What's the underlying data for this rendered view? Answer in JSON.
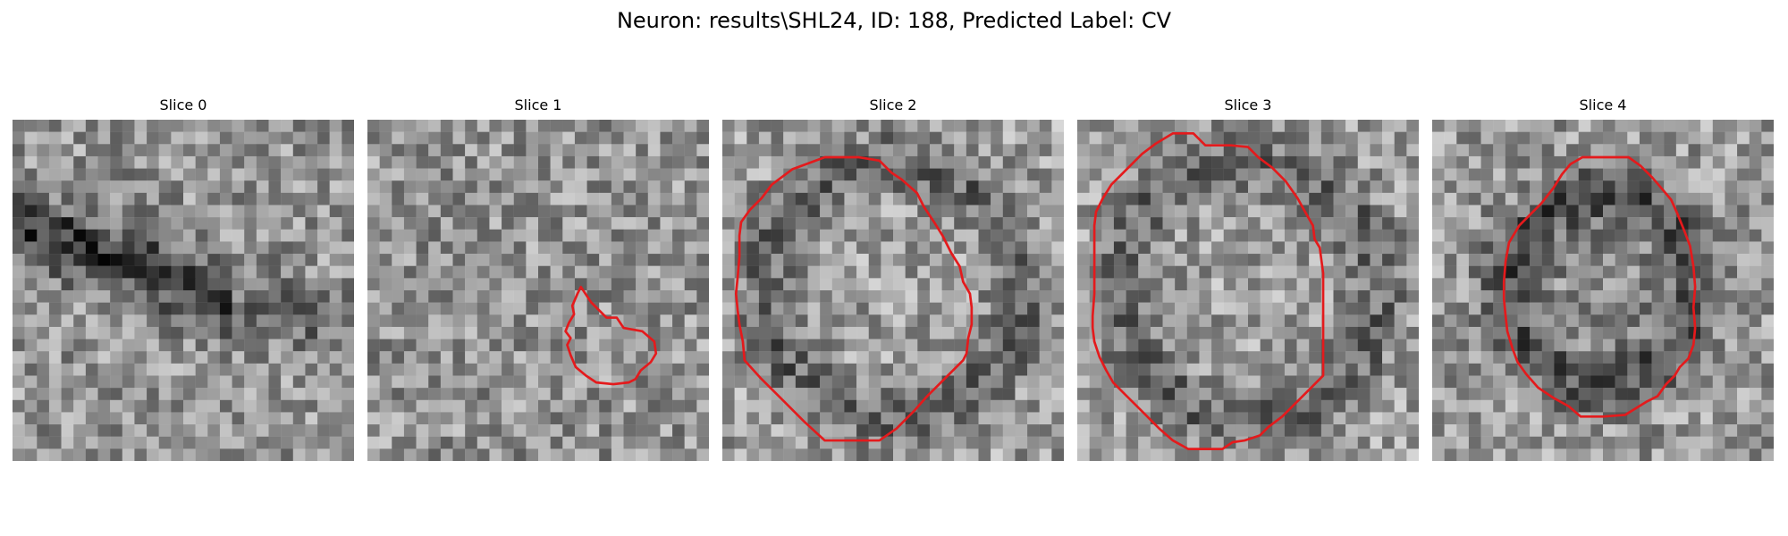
{
  "figure": {
    "title": "Neuron: results\\SHL24, ID: 188, Predicted Label: CV",
    "contour_color": "#e41a1c"
  },
  "panels": [
    {
      "title": "Slice 0",
      "seed": 11,
      "pattern": "dark-band",
      "contour": []
    },
    {
      "title": "Slice 1",
      "seed": 23,
      "pattern": "noise",
      "contour": [
        [
          12.5,
          9.8
        ],
        [
          13.1,
          10.7
        ],
        [
          14.0,
          11.6
        ],
        [
          14.6,
          11.6
        ],
        [
          15.0,
          12.2
        ],
        [
          16.1,
          12.4
        ],
        [
          16.8,
          13.0
        ],
        [
          16.9,
          13.7
        ],
        [
          16.6,
          14.2
        ],
        [
          16.0,
          14.7
        ],
        [
          15.7,
          15.2
        ],
        [
          15.3,
          15.4
        ],
        [
          14.4,
          15.5
        ],
        [
          13.4,
          15.4
        ],
        [
          12.8,
          15.0
        ],
        [
          12.2,
          14.5
        ],
        [
          11.9,
          13.8
        ],
        [
          11.7,
          13.2
        ],
        [
          11.9,
          12.8
        ],
        [
          11.6,
          12.4
        ],
        [
          11.8,
          11.9
        ],
        [
          12.1,
          11.4
        ],
        [
          12.0,
          10.9
        ],
        [
          12.3,
          10.2
        ]
      ]
    },
    {
      "title": "Slice 2",
      "seed": 37,
      "pattern": "ring",
      "contour": [
        [
          4.1,
          2.9
        ],
        [
          6.0,
          2.2
        ],
        [
          8.0,
          2.2
        ],
        [
          9.2,
          2.4
        ],
        [
          9.9,
          3.1
        ],
        [
          10.5,
          3.5
        ],
        [
          11.4,
          4.3
        ],
        [
          11.8,
          5.1
        ],
        [
          12.4,
          6.0
        ],
        [
          12.9,
          6.8
        ],
        [
          13.4,
          7.8
        ],
        [
          13.9,
          8.6
        ],
        [
          14.1,
          9.5
        ],
        [
          14.5,
          10.2
        ],
        [
          14.6,
          11.0
        ],
        [
          14.6,
          12.0
        ],
        [
          14.4,
          12.8
        ],
        [
          14.3,
          13.7
        ],
        [
          14.1,
          14.1
        ],
        [
          13.2,
          15.0
        ],
        [
          12.0,
          16.2
        ],
        [
          11.2,
          17.1
        ],
        [
          10.2,
          18.1
        ],
        [
          9.2,
          18.8
        ],
        [
          8.1,
          18.8
        ],
        [
          6.0,
          18.8
        ],
        [
          4.8,
          17.7
        ],
        [
          3.5,
          16.4
        ],
        [
          2.2,
          15.1
        ],
        [
          1.3,
          14.1
        ],
        [
          1.2,
          13.0
        ],
        [
          1.0,
          12.0
        ],
        [
          0.9,
          11.2
        ],
        [
          0.8,
          10.2
        ],
        [
          0.9,
          9.2
        ],
        [
          1.0,
          8.0
        ],
        [
          1.0,
          6.8
        ],
        [
          1.1,
          6.0
        ],
        [
          1.6,
          5.3
        ],
        [
          2.3,
          4.6
        ],
        [
          2.9,
          3.8
        ]
      ]
    },
    {
      "title": "Slice 3",
      "seed": 53,
      "pattern": "ring",
      "contour": [
        [
          4.6,
          1.4
        ],
        [
          5.6,
          0.8
        ],
        [
          6.8,
          0.8
        ],
        [
          7.5,
          1.5
        ],
        [
          9.0,
          1.5
        ],
        [
          10.0,
          1.6
        ],
        [
          10.6,
          2.2
        ],
        [
          11.4,
          2.8
        ],
        [
          12.2,
          3.6
        ],
        [
          12.9,
          4.6
        ],
        [
          13.4,
          5.5
        ],
        [
          13.8,
          6.2
        ],
        [
          13.9,
          7.0
        ],
        [
          14.2,
          7.5
        ],
        [
          14.4,
          9.0
        ],
        [
          14.4,
          11.0
        ],
        [
          14.4,
          13.0
        ],
        [
          14.4,
          15.0
        ],
        [
          13.6,
          15.8
        ],
        [
          12.8,
          16.6
        ],
        [
          12.0,
          17.4
        ],
        [
          11.2,
          18.0
        ],
        [
          10.7,
          18.5
        ],
        [
          9.8,
          18.8
        ],
        [
          9.1,
          18.9
        ],
        [
          8.5,
          19.3
        ],
        [
          7.5,
          19.3
        ],
        [
          6.5,
          19.3
        ],
        [
          5.6,
          18.8
        ],
        [
          4.8,
          18.1
        ],
        [
          3.8,
          17.1
        ],
        [
          2.8,
          16.1
        ],
        [
          2.1,
          15.4
        ],
        [
          1.7,
          14.7
        ],
        [
          1.3,
          13.9
        ],
        [
          1.0,
          13.0
        ],
        [
          0.9,
          12.2
        ],
        [
          0.9,
          11.5
        ],
        [
          1.0,
          10.2
        ],
        [
          1.0,
          8.8
        ],
        [
          1.0,
          7.5
        ],
        [
          1.0,
          6.2
        ],
        [
          1.1,
          5.4
        ],
        [
          1.5,
          4.6
        ],
        [
          2.0,
          3.8
        ],
        [
          2.8,
          3.0
        ],
        [
          3.8,
          2.0
        ]
      ]
    },
    {
      "title": "Slice 4",
      "seed": 71,
      "pattern": "ring-dark",
      "contour": [
        [
          8.1,
          2.6
        ],
        [
          8.8,
          2.2
        ],
        [
          10.0,
          2.2
        ],
        [
          11.5,
          2.2
        ],
        [
          12.2,
          2.7
        ],
        [
          12.9,
          3.4
        ],
        [
          13.5,
          4.1
        ],
        [
          14.0,
          4.7
        ],
        [
          14.4,
          5.6
        ],
        [
          14.8,
          6.6
        ],
        [
          15.1,
          7.4
        ],
        [
          15.3,
          8.6
        ],
        [
          15.4,
          9.8
        ],
        [
          15.3,
          11.0
        ],
        [
          15.4,
          12.2
        ],
        [
          15.3,
          13.2
        ],
        [
          15.0,
          14.0
        ],
        [
          14.5,
          14.5
        ],
        [
          14.2,
          15.0
        ],
        [
          13.7,
          15.5
        ],
        [
          13.2,
          16.2
        ],
        [
          12.6,
          16.5
        ],
        [
          11.3,
          17.3
        ],
        [
          10.0,
          17.4
        ],
        [
          9.5,
          17.4
        ],
        [
          8.7,
          17.4
        ],
        [
          8.0,
          16.8
        ],
        [
          7.1,
          16.3
        ],
        [
          6.2,
          15.7
        ],
        [
          5.5,
          14.9
        ],
        [
          5.0,
          14.2
        ],
        [
          4.7,
          13.4
        ],
        [
          4.4,
          12.4
        ],
        [
          4.3,
          11.5
        ],
        [
          4.2,
          10.5
        ],
        [
          4.2,
          9.5
        ],
        [
          4.3,
          8.3
        ],
        [
          4.5,
          7.2
        ],
        [
          5.1,
          6.2
        ],
        [
          5.7,
          5.6
        ],
        [
          6.4,
          4.9
        ],
        [
          7.1,
          4.0
        ],
        [
          7.6,
          3.2
        ]
      ]
    }
  ]
}
